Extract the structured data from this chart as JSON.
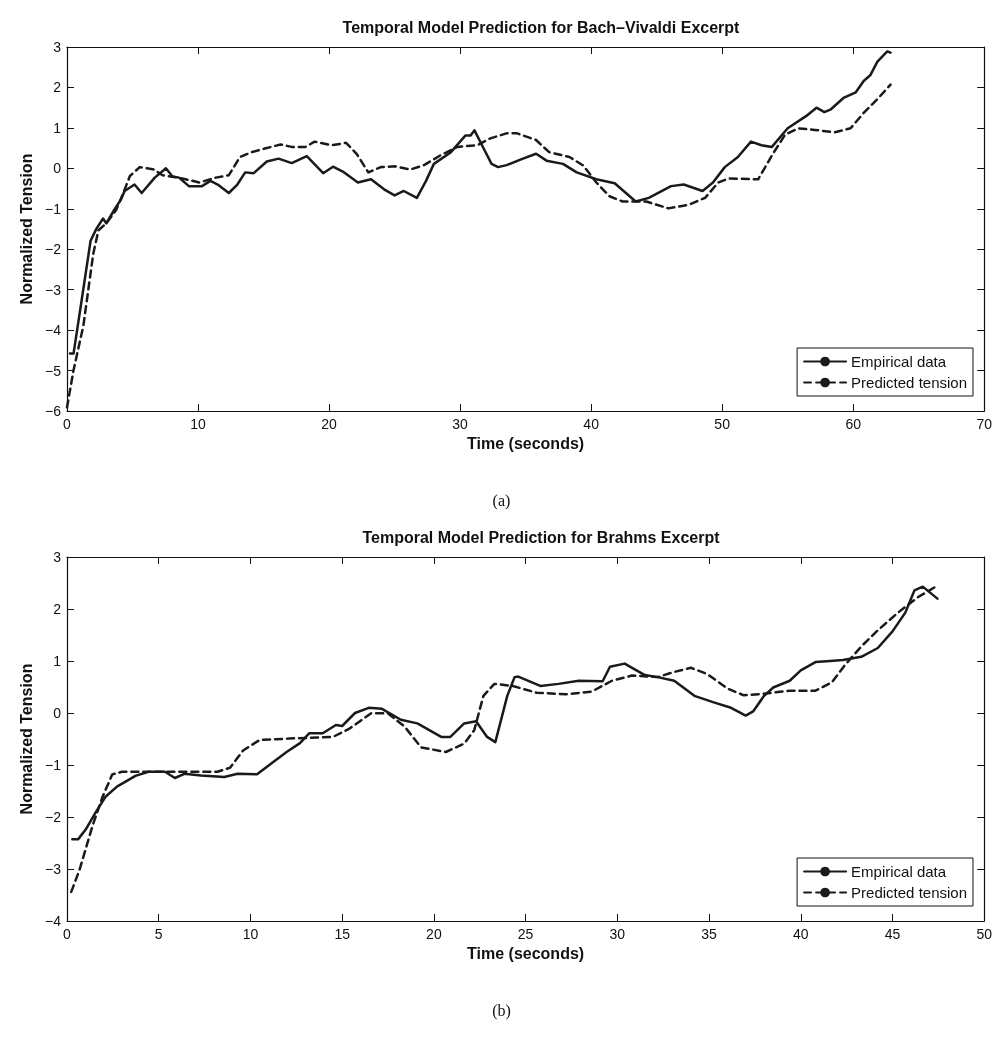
{
  "chart_data": [
    {
      "type": "line",
      "title": "Temporal Model Prediction for Bach–Vivaldi Excerpt",
      "xlabel": "Time (seconds)",
      "ylabel": "Normalized Tension",
      "annotations": [
        "(a)"
      ],
      "xlim": [
        0,
        70
      ],
      "xticks": [
        0,
        10,
        20,
        30,
        40,
        50,
        60,
        70
      ],
      "ylim": [
        -6,
        3
      ],
      "yticks": [
        -6,
        -5,
        -4,
        -3,
        -2,
        -1,
        0,
        1,
        2,
        3
      ],
      "grid": false,
      "legend": "bottom right",
      "series": [
        {
          "name": "Empirical data",
          "color": "#1a1a1a",
          "line_style": "solid",
          "x": [
            0.23,
            0.5,
            1.1,
            1.8,
            2.25,
            2.75,
            3.0,
            3.6,
            4.1,
            4.4,
            5.15,
            5.7,
            6.7,
            7.55,
            8.05,
            8.55,
            9.3,
            10.3,
            10.95,
            11.5,
            12.35,
            13,
            13.6,
            14.25,
            15.25,
            16.15,
            17.15,
            18.3,
            19.55,
            20.3,
            21.05,
            22.2,
            23.2,
            24.2,
            25,
            25.7,
            26.7,
            27.4,
            28,
            29.3,
            30.4,
            30.8,
            31.1,
            31.8,
            32.4,
            32.9,
            33.55,
            34.8,
            35.8,
            36.6,
            37.85,
            38.9,
            40.4,
            41.8,
            43.4,
            44.4,
            46.1,
            47.07,
            48.5,
            49.3,
            50.2,
            51.2,
            52.2,
            53,
            53.8,
            55,
            56.4,
            57.2,
            57.8,
            58.3,
            59.3,
            60.2,
            60.8,
            61.3,
            61.85,
            62.6,
            62.85
          ],
          "values": [
            -4.58,
            -4.58,
            -3.3,
            -1.79,
            -1.49,
            -1.24,
            -1.36,
            -1.03,
            -0.78,
            -0.56,
            -0.4,
            -0.61,
            -0.23,
            0,
            -0.2,
            -0.23,
            -0.44,
            -0.44,
            -0.31,
            -0.4,
            -0.61,
            -0.4,
            -0.1,
            -0.12,
            0.17,
            0.24,
            0.13,
            0.3,
            -0.12,
            0.04,
            -0.08,
            -0.35,
            -0.27,
            -0.52,
            -0.67,
            -0.56,
            -0.73,
            -0.31,
            0.11,
            0.4,
            0.81,
            0.81,
            0.94,
            0.49,
            0.11,
            0.03,
            0.08,
            0.24,
            0.36,
            0.19,
            0.11,
            -0.1,
            -0.27,
            -0.37,
            -0.82,
            -0.73,
            -0.44,
            -0.4,
            -0.56,
            -0.35,
            0.03,
            0.28,
            0.66,
            0.57,
            0.53,
            0.99,
            1.29,
            1.5,
            1.39,
            1.46,
            1.75,
            1.88,
            2.16,
            2.3,
            2.64,
            2.89,
            2.86
          ]
        },
        {
          "name": "Predicted tension",
          "color": "#1a1a1a",
          "line_style": "dashed",
          "x": [
            0,
            0.5,
            1.25,
            2.0,
            2.4,
            3,
            3.75,
            4.25,
            4.8,
            5.55,
            6.55,
            7.3,
            8.8,
            10.1,
            11.35,
            12.35,
            13.2,
            14.1,
            15.1,
            16.3,
            17.15,
            18.2,
            18.9,
            20.2,
            21.3,
            22.1,
            23,
            23.95,
            25,
            26.2,
            27.25,
            28.5,
            29.8,
            31.3,
            32.3,
            33.6,
            34.3,
            35.8,
            36.8,
            38.35,
            39.4,
            40.4,
            41.4,
            42.4,
            44.2,
            45.9,
            47.45,
            48.7,
            49.7,
            50.5,
            52.75,
            53.8,
            54.8,
            55.8,
            57.05,
            58.6,
            59.8,
            60.8,
            61.85,
            62.85
          ],
          "values": [
            -5.91,
            -4.99,
            -3.89,
            -2.12,
            -1.53,
            -1.36,
            -1.03,
            -0.65,
            -0.19,
            0.03,
            -0.02,
            -0.17,
            -0.25,
            -0.35,
            -0.23,
            -0.17,
            0.28,
            0.4,
            0.49,
            0.59,
            0.53,
            0.53,
            0.66,
            0.57,
            0.63,
            0.36,
            -0.1,
            0.03,
            0.05,
            -0.03,
            0.08,
            0.32,
            0.53,
            0.57,
            0.74,
            0.87,
            0.87,
            0.7,
            0.4,
            0.28,
            0.07,
            -0.35,
            -0.69,
            -0.82,
            -0.82,
            -0.99,
            -0.9,
            -0.73,
            -0.35,
            -0.25,
            -0.27,
            0.32,
            0.83,
            0.99,
            0.95,
            0.89,
            0.99,
            1.37,
            1.71,
            2.07
          ]
        }
      ]
    },
    {
      "type": "line",
      "title": "Temporal Model Prediction for Brahms Excerpt",
      "xlabel": "Time (seconds)",
      "ylabel": "Normalized Tension",
      "annotations": [
        "(b)"
      ],
      "xlim": [
        0,
        50
      ],
      "xticks": [
        0,
        5,
        10,
        15,
        20,
        25,
        30,
        35,
        40,
        45,
        50
      ],
      "ylim": [
        -4,
        3
      ],
      "yticks": [
        -4,
        -3,
        -2,
        -1,
        0,
        1,
        2,
        3
      ],
      "grid": false,
      "legend": "bottom right",
      "series": [
        {
          "name": "Empirical data",
          "color": "#1a1a1a",
          "line_style": "solid",
          "x": [
            0.29,
            0.6,
            1.04,
            1.58,
            2.1,
            2.74,
            3.1,
            3.73,
            4.44,
            5.34,
            5.88,
            6.4,
            7.3,
            8.57,
            9.3,
            10.36,
            11.1,
            11.97,
            12.7,
            13.2,
            13.94,
            14.66,
            15.0,
            15.7,
            16.45,
            17.17,
            18.2,
            19.1,
            20.4,
            20.9,
            21.65,
            22.3,
            22.9,
            23.35,
            24,
            24.4,
            24.6,
            25.8,
            26.8,
            27.9,
            29.2,
            29.6,
            30.4,
            31.5,
            32.2,
            33.1,
            34.2,
            35.3,
            36.2,
            37.0,
            37.4,
            38.0,
            38.5,
            39.4,
            40.0,
            40.8,
            41.6,
            42.3,
            43.3,
            44.2,
            45.0,
            45.7,
            46.2,
            46.65,
            47.45
          ],
          "values": [
            -2.43,
            -2.43,
            -2.23,
            -1.9,
            -1.61,
            -1.41,
            -1.34,
            -1.21,
            -1.13,
            -1.13,
            -1.25,
            -1.17,
            -1.2,
            -1.23,
            -1.17,
            -1.18,
            -0.98,
            -0.75,
            -0.58,
            -0.39,
            -0.39,
            -0.23,
            -0.25,
            0,
            0.1,
            0.08,
            -0.13,
            -0.2,
            -0.46,
            -0.46,
            -0.2,
            -0.16,
            -0.46,
            -0.56,
            0.33,
            0.69,
            0.7,
            0.52,
            0.56,
            0.62,
            0.61,
            0.89,
            0.95,
            0.73,
            0.69,
            0.62,
            0.33,
            0.2,
            0.1,
            -0.05,
            0.03,
            0.33,
            0.49,
            0.62,
            0.82,
            0.98,
            1.0,
            1.02,
            1.08,
            1.25,
            1.57,
            1.93,
            2.36,
            2.43,
            2.2
          ]
        },
        {
          "name": "Predicted tension",
          "color": "#1a1a1a",
          "line_style": "dashed",
          "x": [
            0.23,
            0.68,
            1.4,
            1.94,
            2.47,
            3.0,
            5,
            8.2,
            8.9,
            9.6,
            10.5,
            12.15,
            14.5,
            15.4,
            16.6,
            17.5,
            18.4,
            19.3,
            20.65,
            21.65,
            22.2,
            22.7,
            23.3,
            24.3,
            25.6,
            27.2,
            28.6,
            29.7,
            30.8,
            32.2,
            33.1,
            34.0,
            34.9,
            36.0,
            36.9,
            37.96,
            39.4,
            40.8,
            41.7,
            42.4,
            43.3,
            44.2,
            45.3,
            46.4,
            47.5
          ],
          "values": [
            -3.44,
            -3.02,
            -2.16,
            -1.61,
            -1.18,
            -1.13,
            -1.13,
            -1.13,
            -1.05,
            -0.72,
            -0.52,
            -0.49,
            -0.46,
            -0.3,
            0,
            -0.01,
            -0.26,
            -0.66,
            -0.75,
            -0.59,
            -0.33,
            0.33,
            0.56,
            0.52,
            0.39,
            0.36,
            0.41,
            0.62,
            0.72,
            0.69,
            0.79,
            0.87,
            0.75,
            0.47,
            0.34,
            0.37,
            0.43,
            0.43,
            0.59,
            0.92,
            1.28,
            1.59,
            1.93,
            2.23,
            2.46
          ]
        }
      ]
    }
  ]
}
